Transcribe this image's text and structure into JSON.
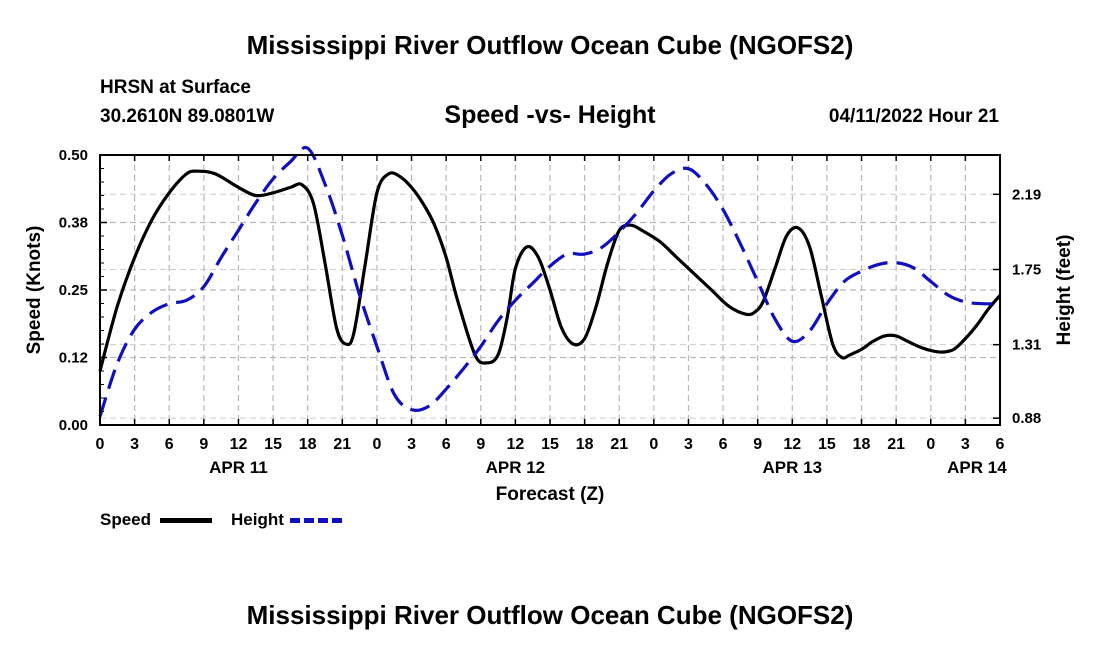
{
  "header": {
    "title": "Mississippi River Outflow Ocean Cube (NGOFS2)",
    "station_name": "HRSN at Surface",
    "station_coords": "30.2610N  89.0801W",
    "subtitle": "Speed -vs- Height",
    "datetime": "04/11/2022 Hour 21"
  },
  "footer": {
    "title": "Mississippi River Outflow Ocean Cube (NGOFS2)"
  },
  "legend": {
    "speed_label": "Speed",
    "height_label": "Height"
  },
  "colors": {
    "speed": "#000000",
    "height": "#1010c0",
    "grid": "#b8b8b8"
  },
  "chart_data": {
    "type": "line",
    "title": "Speed -vs- Height",
    "xlabel": "Forecast (Z)",
    "ylabel": "Speed (Knots)",
    "y2label": "Height (feet)",
    "x_range": [
      0,
      78
    ],
    "x_ticks": [
      0,
      3,
      6,
      9,
      12,
      15,
      18,
      21,
      24,
      27,
      30,
      33,
      36,
      39,
      42,
      45,
      48,
      51,
      54,
      57,
      60,
      63,
      66,
      69,
      72,
      75,
      78
    ],
    "x_tick_labels": [
      "0",
      "3",
      "6",
      "9",
      "12",
      "15",
      "18",
      "21",
      "0",
      "3",
      "6",
      "9",
      "12",
      "15",
      "18",
      "21",
      "0",
      "3",
      "6",
      "9",
      "12",
      "15",
      "18",
      "21",
      "0",
      "3",
      "6"
    ],
    "date_labels": [
      {
        "x": 12,
        "label": "APR 11"
      },
      {
        "x": 36,
        "label": "APR 12"
      },
      {
        "x": 60,
        "label": "APR 13"
      },
      {
        "x": 76,
        "label": "APR 14"
      }
    ],
    "ylim": [
      0,
      0.5
    ],
    "y_ticks": [
      0.0,
      0.125,
      0.25,
      0.375,
      0.5
    ],
    "y_tick_labels": [
      "0.00",
      "0.12",
      "0.25",
      "0.38",
      "0.50"
    ],
    "y2lim": [
      0.84,
      2.42
    ],
    "y2_ticks": [
      0.88,
      1.31,
      1.75,
      2.19
    ],
    "y2_tick_labels": [
      "0.88",
      "1.31",
      "1.75",
      "2.19"
    ],
    "series": [
      {
        "name": "Speed",
        "axis": "left",
        "style": "solid",
        "x": [
          0,
          1.5,
          3,
          4.5,
          6,
          7.5,
          8.5,
          10,
          12,
          13.5,
          15,
          16.5,
          17.5,
          18.5,
          19.5,
          20.5,
          21.3,
          22,
          23,
          24,
          25,
          26,
          27,
          28,
          29,
          30,
          31,
          32.5,
          33.5,
          34.5,
          35.3,
          36,
          37,
          38,
          39,
          40,
          41,
          42,
          43,
          44,
          45,
          46,
          47,
          48.5,
          50,
          51.5,
          53,
          54.5,
          56,
          56.8,
          57.5,
          58.5,
          59.5,
          60.5,
          61.5,
          62.5,
          63.5,
          64.3,
          65,
          66,
          67,
          68,
          69,
          70,
          71,
          72,
          73,
          74,
          75,
          76,
          77,
          78
        ],
        "y": [
          0.1,
          0.22,
          0.31,
          0.38,
          0.43,
          0.465,
          0.47,
          0.465,
          0.44,
          0.425,
          0.43,
          0.44,
          0.445,
          0.41,
          0.3,
          0.18,
          0.15,
          0.17,
          0.3,
          0.43,
          0.465,
          0.46,
          0.44,
          0.41,
          0.37,
          0.31,
          0.23,
          0.13,
          0.115,
          0.13,
          0.2,
          0.29,
          0.33,
          0.31,
          0.25,
          0.18,
          0.15,
          0.16,
          0.22,
          0.3,
          0.36,
          0.37,
          0.36,
          0.34,
          0.31,
          0.28,
          0.25,
          0.22,
          0.205,
          0.21,
          0.23,
          0.29,
          0.35,
          0.365,
          0.33,
          0.24,
          0.15,
          0.125,
          0.13,
          0.14,
          0.155,
          0.165,
          0.165,
          0.155,
          0.145,
          0.138,
          0.135,
          0.14,
          0.16,
          0.185,
          0.215,
          0.24
        ]
      },
      {
        "name": "Height",
        "axis": "right",
        "style": "dashed",
        "x": [
          0,
          1.5,
          3,
          4.5,
          6,
          7.5,
          9,
          10.5,
          12,
          13.5,
          15,
          16.5,
          18,
          19.5,
          21,
          22.5,
          24,
          25.5,
          27,
          28.5,
          30,
          31.5,
          33,
          34.5,
          36,
          37.5,
          39,
          40.5,
          42,
          43.5,
          45,
          46.5,
          48,
          49.5,
          51,
          52.5,
          54,
          55.5,
          57,
          58.5,
          60,
          61.5,
          63,
          64.5,
          66,
          67.5,
          69,
          70.5,
          72,
          73.5,
          75,
          76.5,
          78
        ],
        "y": [
          0.89,
          1.2,
          1.4,
          1.5,
          1.55,
          1.57,
          1.65,
          1.82,
          1.98,
          2.14,
          2.28,
          2.38,
          2.46,
          2.25,
          1.95,
          1.6,
          1.3,
          1.02,
          0.93,
          0.95,
          1.05,
          1.17,
          1.3,
          1.45,
          1.57,
          1.67,
          1.77,
          1.84,
          1.84,
          1.88,
          1.97,
          2.08,
          2.21,
          2.31,
          2.34,
          2.25,
          2.1,
          1.9,
          1.68,
          1.46,
          1.33,
          1.39,
          1.55,
          1.68,
          1.74,
          1.78,
          1.79,
          1.76,
          1.68,
          1.6,
          1.56,
          1.55,
          1.55
        ]
      }
    ]
  }
}
